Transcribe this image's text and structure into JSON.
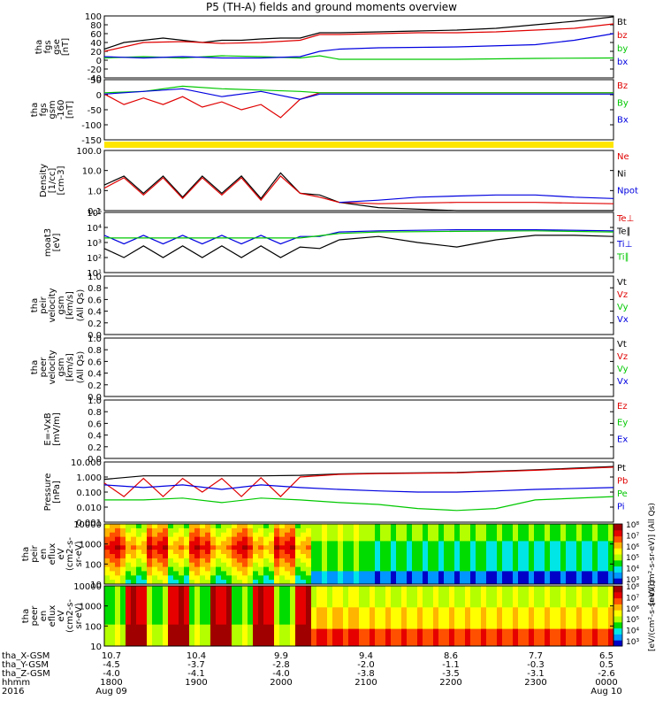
{
  "title": "P5 (TH-A) fields and ground moments overview",
  "colors": {
    "black": "#000000",
    "red": "#e00000",
    "green": "#00c800",
    "blue": "#0000e0",
    "yellow": "#ffe600"
  },
  "chart_data": [
    {
      "type": "line",
      "id": "fgs",
      "ylabel": [
        "tha",
        "fgs",
        "gse",
        "[nT]"
      ],
      "ylim": [
        -40,
        100
      ],
      "ticks": [
        "100",
        "80",
        "60",
        "40",
        "20",
        "0",
        "-20",
        "-40"
      ],
      "legend": [
        {
          "name": "Bt",
          "color": "#000000"
        },
        {
          "name": "bz",
          "color": "#e00000"
        },
        {
          "name": "by",
          "color": "#00c800"
        },
        {
          "name": "bx",
          "color": "#0000e0"
        }
      ],
      "series": [
        {
          "name": "Bt",
          "color": "#000000",
          "x": [
            1730,
            1745,
            1800,
            1815,
            1830,
            1845,
            1900,
            1915,
            1930,
            1945,
            2000,
            2015,
            2030,
            2100,
            2130,
            2200,
            2230,
            2300,
            2330,
            0
          ],
          "y": [
            25,
            40,
            45,
            50,
            45,
            40,
            45,
            45,
            48,
            50,
            50,
            62,
            62,
            64,
            66,
            68,
            72,
            80,
            88,
            98
          ]
        },
        {
          "name": "bz",
          "color": "#e00000",
          "x": [
            1730,
            1800,
            1830,
            1900,
            1930,
            2000,
            2015,
            2030,
            2100,
            2130,
            2200,
            2230,
            2300,
            2330,
            0
          ],
          "y": [
            20,
            40,
            42,
            38,
            40,
            45,
            58,
            58,
            60,
            62,
            62,
            64,
            68,
            72,
            82
          ]
        },
        {
          "name": "by",
          "color": "#00c800",
          "x": [
            1730,
            1800,
            1830,
            1900,
            1930,
            2000,
            2015,
            2030,
            2100,
            2200,
            2300,
            0
          ],
          "y": [
            5,
            8,
            5,
            10,
            8,
            5,
            10,
            2,
            2,
            2,
            4,
            5
          ]
        },
        {
          "name": "bx",
          "color": "#0000e0",
          "x": [
            1730,
            1800,
            1830,
            1900,
            1930,
            2000,
            2015,
            2030,
            2100,
            2200,
            2300,
            2330,
            0
          ],
          "y": [
            8,
            5,
            8,
            5,
            5,
            8,
            20,
            25,
            28,
            30,
            35,
            45,
            60
          ]
        }
      ]
    },
    {
      "type": "line",
      "id": "fgsgsm",
      "ylabel": [
        "tha",
        "fgs",
        "gsm",
        "-160",
        "[nT]"
      ],
      "ylim": [
        -175,
        55
      ],
      "ticks": [
        "50",
        "0",
        "-50",
        "-100",
        "-150"
      ],
      "legend": [
        {
          "name": "Bz",
          "color": "#e00000"
        },
        {
          "name": "By",
          "color": "#00c800"
        },
        {
          "name": "Bx",
          "color": "#0000e0"
        }
      ],
      "series": [
        {
          "name": "Bz",
          "color": "#e00000",
          "x": [
            1730,
            1745,
            1800,
            1815,
            1830,
            1845,
            1900,
            1915,
            1930,
            1945,
            2000,
            2015,
            2030,
            2100,
            2200,
            2300,
            0
          ],
          "y": [
            0,
            -40,
            -15,
            -40,
            -10,
            -50,
            -30,
            -60,
            -40,
            -90,
            -20,
            5,
            5,
            5,
            5,
            5,
            5
          ]
        },
        {
          "name": "By",
          "color": "#00c800",
          "x": [
            1730,
            1800,
            1830,
            1900,
            1930,
            2000,
            2015,
            2030,
            2100,
            2200,
            2300,
            0
          ],
          "y": [
            5,
            10,
            30,
            20,
            15,
            10,
            5,
            5,
            5,
            5,
            5,
            5
          ]
        },
        {
          "name": "Bx",
          "color": "#0000e0",
          "x": [
            1730,
            1800,
            1830,
            1900,
            1930,
            2000,
            2015,
            2030,
            2100,
            2200,
            2300,
            0
          ],
          "y": [
            0,
            10,
            20,
            -10,
            10,
            -20,
            0,
            0,
            0,
            0,
            0,
            0
          ]
        }
      ]
    },
    {
      "type": "line",
      "id": "density",
      "ylabel": [
        "Density",
        "[1/cc]",
        "[cm-3]"
      ],
      "scale": "log",
      "ylim": [
        0.1,
        300
      ],
      "ticks": [
        "100.0",
        "10.0",
        "1.0",
        "0.1"
      ],
      "legend": [
        {
          "name": "Ne",
          "color": "#e00000"
        },
        {
          "name": "Ni",
          "color": "#000000"
        },
        {
          "name": "Npot",
          "color": "#0000e0"
        }
      ],
      "series": [
        {
          "name": "Ni",
          "color": "#000000",
          "x": [
            1730,
            1745,
            1800,
            1815,
            1830,
            1845,
            1900,
            1915,
            1930,
            1945,
            2000,
            2015,
            2030,
            2100,
            2200,
            2300,
            0
          ],
          "y": [
            3,
            10,
            1,
            10,
            0.6,
            10,
            1,
            10,
            0.5,
            15,
            1,
            0.8,
            0.3,
            0.15,
            0.1,
            0.1,
            0.1
          ]
        },
        {
          "name": "Ne",
          "color": "#e00000",
          "x": [
            1730,
            1745,
            1800,
            1815,
            1830,
            1845,
            1900,
            1915,
            1930,
            1945,
            2000,
            2015,
            2030,
            2100,
            2200,
            2300,
            0
          ],
          "y": [
            2,
            8,
            0.8,
            8,
            0.5,
            8,
            0.8,
            8,
            0.4,
            10,
            1,
            0.6,
            0.3,
            0.25,
            0.3,
            0.3,
            0.25
          ]
        },
        {
          "name": "Npot",
          "color": "#0000e0",
          "x": [
            2030,
            2100,
            2130,
            2200,
            2230,
            2300,
            2330,
            0
          ],
          "y": [
            0.3,
            0.4,
            0.6,
            0.7,
            0.8,
            0.8,
            0.6,
            0.5
          ]
        }
      ]
    },
    {
      "type": "line",
      "id": "moat",
      "ylabel": [
        "moat3",
        "[eV]"
      ],
      "scale": "log",
      "ylim": [
        10,
        100000
      ],
      "ticks": [
        "10⁵",
        "10⁴",
        "10³",
        "10²",
        "10¹"
      ],
      "legend": [
        {
          "name": "Te⊥",
          "color": "#e00000"
        },
        {
          "name": "Te∥",
          "color": "#000000"
        },
        {
          "name": "Ti⊥",
          "color": "#0000e0"
        },
        {
          "name": "Ti∥",
          "color": "#00c800"
        }
      ],
      "series": [
        {
          "name": "Te",
          "color": "#000000",
          "x": [
            1730,
            1745,
            1800,
            1815,
            1830,
            1845,
            1900,
            1915,
            1930,
            1945,
            2000,
            2015,
            2030,
            2100,
            2130,
            2200,
            2230,
            2300,
            2330,
            0
          ],
          "y": [
            400,
            100,
            600,
            100,
            600,
            100,
            600,
            100,
            600,
            100,
            500,
            400,
            1500,
            2500,
            1000,
            500,
            1500,
            3000,
            3000,
            2500
          ]
        },
        {
          "name": "Ti",
          "color": "#0000e0",
          "x": [
            1730,
            1745,
            1800,
            1815,
            1830,
            1845,
            1900,
            1915,
            1930,
            1945,
            2000,
            2015,
            2030,
            2100,
            2200,
            2300,
            0
          ],
          "y": [
            3000,
            800,
            3000,
            800,
            3000,
            800,
            3000,
            800,
            3000,
            800,
            2500,
            2500,
            5000,
            6000,
            7000,
            7000,
            6000
          ]
        },
        {
          "name": "Ti∥",
          "color": "#00c800",
          "x": [
            1730,
            1800,
            1830,
            1900,
            1930,
            2000,
            2030,
            2100,
            2200,
            2300,
            0
          ],
          "y": [
            2000,
            2000,
            2000,
            2000,
            2000,
            2000,
            4000,
            5000,
            5500,
            6000,
            5000
          ]
        }
      ]
    },
    {
      "type": "line",
      "id": "peirv",
      "ylabel": [
        "tha",
        "peir",
        "velocity",
        "gsm",
        "[km/s]"
      ],
      "ylim": [
        0,
        1
      ],
      "ticks": [
        "1.0",
        "0.8",
        "0.6",
        "0.4",
        "0.2",
        "0.0"
      ],
      "ytitle": "(All Qs)",
      "legend": [
        {
          "name": "Vt",
          "color": "#000000"
        },
        {
          "name": "Vz",
          "color": "#e00000"
        },
        {
          "name": "Vy",
          "color": "#00c800"
        },
        {
          "name": "Vx",
          "color": "#0000e0"
        }
      ],
      "series": []
    },
    {
      "type": "line",
      "id": "peerv",
      "ylabel": [
        "tha",
        "peer",
        "velocity",
        "gsm",
        "[km/s]"
      ],
      "ylim": [
        0,
        1
      ],
      "ticks": [
        "1.0",
        "0.8",
        "0.6",
        "0.4",
        "0.2",
        "0.0"
      ],
      "ytitle": "(All Qs)",
      "legend": [
        {
          "name": "Vt",
          "color": "#000000"
        },
        {
          "name": "Vz",
          "color": "#e00000"
        },
        {
          "name": "Vy",
          "color": "#00c800"
        },
        {
          "name": "Vx",
          "color": "#0000e0"
        }
      ],
      "series": []
    },
    {
      "type": "line",
      "id": "efield",
      "ylabel": [
        "E=-VxB",
        "[mV/m]"
      ],
      "ylim": [
        0,
        1
      ],
      "ticks": [
        "1.0",
        "0.8",
        "0.6",
        "0.4",
        "0.2",
        "0.0"
      ],
      "legend": [
        {
          "name": "Ez",
          "color": "#e00000"
        },
        {
          "name": "Ey",
          "color": "#00c800"
        },
        {
          "name": "Ex",
          "color": "#0000e0"
        }
      ],
      "series": []
    },
    {
      "type": "line",
      "id": "pressure",
      "ylabel": [
        "Pressure",
        "[nPa]"
      ],
      "scale": "log",
      "ylim": [
        0.001,
        10
      ],
      "ticks": [
        "10.000",
        "1.000",
        "0.100",
        "0.010",
        "0.001"
      ],
      "legend": [
        {
          "name": "Pt",
          "color": "#000000"
        },
        {
          "name": "Pb",
          "color": "#e00000"
        },
        {
          "name": "Pe",
          "color": "#00c800"
        },
        {
          "name": "Pi",
          "color": "#0000e0"
        }
      ],
      "series": [
        {
          "name": "Pt",
          "color": "#000000",
          "x": [
            1730,
            1800,
            1830,
            1900,
            1930,
            2000,
            2030,
            2100,
            2200,
            2300,
            0
          ],
          "y": [
            0.7,
            1.2,
            1.2,
            1.2,
            1.2,
            1.3,
            1.6,
            1.8,
            2,
            3,
            5
          ]
        },
        {
          "name": "Pb",
          "color": "#e00000",
          "x": [
            1730,
            1745,
            1800,
            1815,
            1830,
            1845,
            1900,
            1915,
            1930,
            1945,
            2000,
            2030,
            2100,
            2200,
            2300,
            0
          ],
          "y": [
            0.4,
            0.05,
            0.8,
            0.05,
            0.8,
            0.1,
            0.8,
            0.05,
            0.9,
            0.05,
            1,
            1.5,
            1.7,
            1.9,
            2.8,
            4.5
          ]
        },
        {
          "name": "Pe",
          "color": "#00c800",
          "x": [
            1730,
            1800,
            1830,
            1900,
            1930,
            2000,
            2030,
            2100,
            2130,
            2200,
            2230,
            2300,
            0
          ],
          "y": [
            0.03,
            0.03,
            0.04,
            0.02,
            0.04,
            0.03,
            0.02,
            0.015,
            0.008,
            0.006,
            0.008,
            0.03,
            0.05
          ]
        },
        {
          "name": "Pi",
          "color": "#0000e0",
          "x": [
            1730,
            1800,
            1830,
            1900,
            1930,
            2000,
            2030,
            2100,
            2130,
            2200,
            2230,
            2300,
            0
          ],
          "y": [
            0.3,
            0.2,
            0.3,
            0.15,
            0.3,
            0.2,
            0.15,
            0.12,
            0.1,
            0.1,
            0.12,
            0.15,
            0.2
          ]
        }
      ]
    },
    {
      "type": "heatmap",
      "id": "peiren",
      "ylabel": [
        "tha",
        "peir",
        "en",
        "eflux",
        "eV",
        "(cm2-s-",
        "sr-eV)"
      ],
      "scale": "log",
      "ticks": [
        "10000",
        "1000",
        "100",
        "10"
      ],
      "colorbar_label": "[eV/(cm²-s-sr-eV)] (All Qs)"
    },
    {
      "type": "heatmap",
      "id": "peeren",
      "ylabel": [
        "tha",
        "peer",
        "en",
        "eflux",
        "eV",
        "(cm2-s-",
        "sr-eV)"
      ],
      "scale": "log",
      "ticks": [
        "10000",
        "1000",
        "100",
        "10"
      ],
      "colorbar_label": "[eV/(cm²-s-sr-eV)]"
    }
  ],
  "colorbar": {
    "ticks": [
      "10⁸",
      "10⁷",
      "10⁶",
      "10⁵",
      "10⁴",
      "10³"
    ]
  },
  "xaxis": {
    "rows": [
      {
        "label": "tha_X-GSM",
        "values": [
          "10.7",
          "10.4",
          "9.9",
          "9.4",
          "8.6",
          "7.7",
          "6.5"
        ]
      },
      {
        "label": "tha_Y-GSM",
        "values": [
          "-4.5",
          "-3.7",
          "-2.8",
          "-2.0",
          "-1.1",
          "-0.3",
          "0.5"
        ]
      },
      {
        "label": "tha_Z-GSM",
        "values": [
          "-4.0",
          "-4.1",
          "-4.0",
          "-3.8",
          "-3.5",
          "-3.1",
          "-2.6"
        ]
      },
      {
        "label": "hhmm",
        "values": [
          "1800",
          "1900",
          "2000",
          "2100",
          "2200",
          "2300",
          "0000"
        ]
      },
      {
        "label": "2016",
        "values": [
          "Aug 09",
          "",
          "",
          "",
          "",
          "",
          "Aug 10"
        ]
      }
    ]
  }
}
